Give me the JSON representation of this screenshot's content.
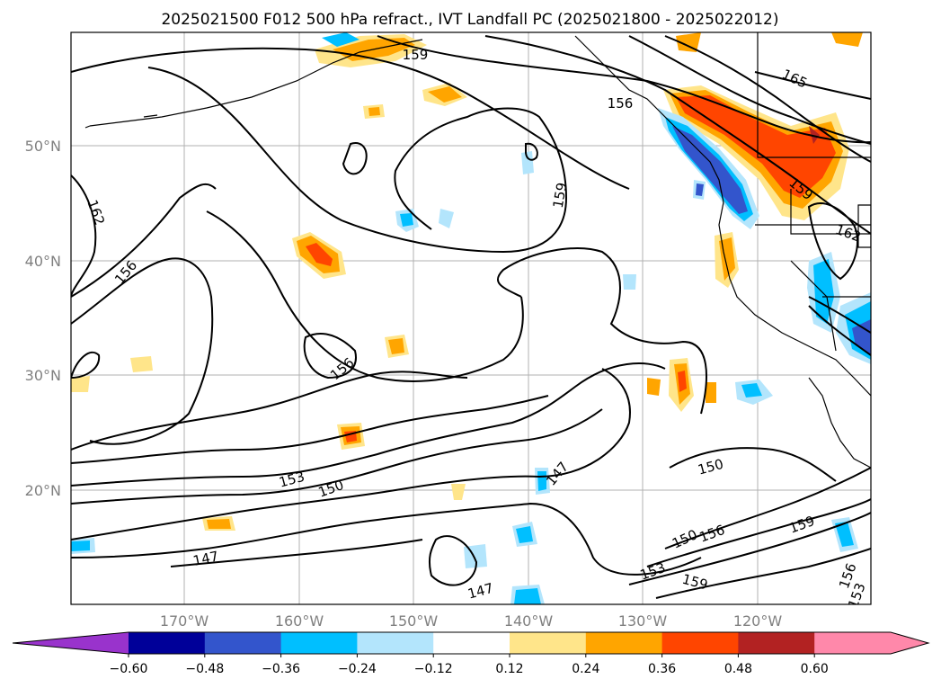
{
  "title": "2025021500 F012 500 hPa refract., IVT Landfall PC (2025021800 - 2025022012)",
  "map": {
    "lon_labels": [
      "170°W",
      "160°W",
      "150°W",
      "140°W",
      "130°W",
      "120°W"
    ],
    "lat_labels": [
      "50°N",
      "40°N",
      "30°N",
      "20°N"
    ],
    "contour_labels": [
      "159",
      "165",
      "156",
      "159",
      "162",
      "159",
      "156",
      "156",
      "153",
      "150",
      "147",
      "150",
      "159",
      "150",
      "156",
      "153",
      "159",
      "147",
      "156",
      "147",
      "153",
      "162"
    ]
  },
  "colorbar": {
    "ticks": [
      "−0.60",
      "−0.48",
      "−0.36",
      "−0.24",
      "−0.12",
      "0.12",
      "0.24",
      "0.36",
      "0.48",
      "0.60"
    ],
    "colors": [
      "#9933cc",
      "#000099",
      "#3355cc",
      "#00bfff",
      "#b3e5fc",
      "#ffffff",
      "#ffe58a",
      "#ffa500",
      "#ff4500",
      "#b22222",
      "#ff88aa",
      "#ff88aa"
    ]
  }
}
